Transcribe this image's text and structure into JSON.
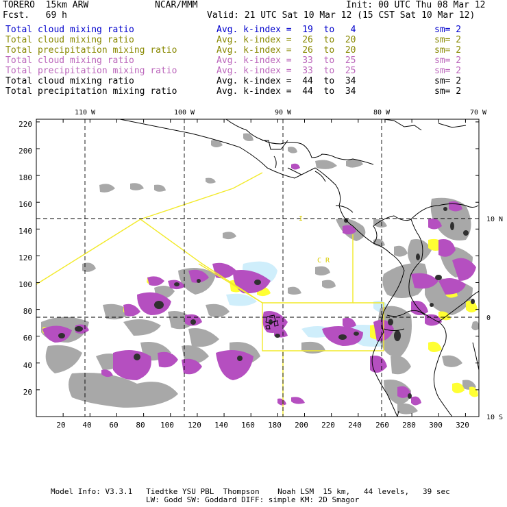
{
  "header": {
    "model": "TORERO  15km ARW",
    "center": "NCAR/MMM",
    "init": "Init: 00 UTC Thu 08 Mar 12",
    "fcst": "Fcst.   69 h",
    "valid": "Valid: 21 UTC Sat 10 Mar 12 (15 CST Sat 10 Mar 12)"
  },
  "legend": [
    {
      "field": "Total cloud mixing ratio",
      "index": "Avg. k-index =  19  to   4",
      "sm": "sm= 2",
      "color": "#0000cc"
    },
    {
      "field": "Total cloud mixing ratio",
      "index": "Avg. k-index =  26  to  20",
      "sm": "sm= 2",
      "color": "#888800"
    },
    {
      "field": "Total precipitation mixing ratio",
      "index": "Avg. k-index =  26  to  20",
      "sm": "sm= 2",
      "color": "#888800"
    },
    {
      "field": "Total cloud mixing ratio",
      "index": "Avg. k-index =  33  to  25",
      "sm": "sm= 2",
      "color": "#bb66bb"
    },
    {
      "field": "Total precipitation mixing ratio",
      "index": "Avg. k-index =  33  to  25",
      "sm": "sm= 2",
      "color": "#bb66bb"
    },
    {
      "field": "Total cloud mixing ratio",
      "index": "Avg. k-index =  44  to  34",
      "sm": "sm= 2",
      "color": "#000000"
    },
    {
      "field": "Total precipitation mixing ratio",
      "index": "Avg. k-index =  44  to  34",
      "sm": "sm= 2",
      "color": "#000000"
    }
  ],
  "axes": {
    "x_ticks": [
      "20",
      "40",
      "60",
      "80",
      "100",
      "120",
      "140",
      "160",
      "180",
      "200",
      "220",
      "240",
      "260",
      "280",
      "300",
      "320"
    ],
    "y_ticks": [
      "20",
      "40",
      "60",
      "80",
      "100",
      "120",
      "140",
      "160",
      "180",
      "200",
      "220"
    ],
    "lon_labels": [
      "110 W",
      "100 W",
      "90 W",
      "80 W",
      "70 W"
    ],
    "lat_labels": [
      "10 N",
      "0",
      "10 S"
    ]
  },
  "map_labels": {
    "country_a": "I",
    "country_b": "C  R"
  },
  "footer": {
    "line1": "Model Info: V3.3.1   Tiedtke YSU PBL  Thompson    Noah LSM  15 km,   44 levels,   39 sec",
    "line2": "LW: Godd SW: Goddard DIFF: simple KM: 2D Smagor"
  },
  "colors": {
    "cloud_gray": "#a8a8a8",
    "precip_purple": "#b54fc0",
    "core_dark": "#303030",
    "yellow": "#ffff33",
    "light_blue": "#cfeefb",
    "boundary_yellow": "#f2ea2a"
  }
}
